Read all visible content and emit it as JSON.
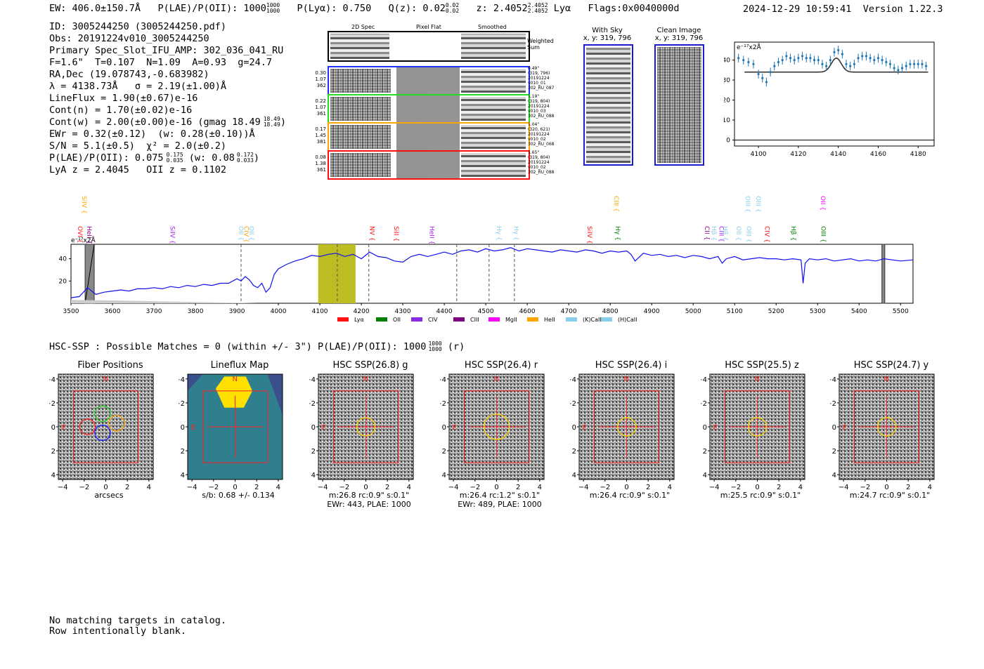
{
  "header": {
    "ew": "EW: 406.0±150.7Å",
    "plae": "P(LAE)/P(OII): 1000",
    "plae_hi": "1000",
    "plae_lo": "1000",
    "plya": "P(Lyα): 0.750",
    "qz": "Q(z): 0.02",
    "qz_hi": "0.02",
    "qz_lo": "0.02",
    "z": "z: 2.4052",
    "z_hi": "2.4052",
    "z_lo": "2.4052",
    "z_line": "Lyα",
    "flags": "Flags:0x0040000d",
    "timestamp": "2024-12-29 10:59:41",
    "version": "Version 1.22.3"
  },
  "info": [
    "ID: 3005244250 (3005244250.pdf)",
    "Obs: 20191224v010_3005244250",
    "Primary Spec_Slot_IFU_AMP: 302_036_041_RU",
    "F=1.6\"  T=0.107  N=1.09  A=0.93  g=24.7",
    "RA,Dec (19.078743,-0.683982)",
    "λ = 4138.73Å   σ = 2.19(±1.00)Å",
    "LineFlux = 1.90(±0.67)e-16",
    "Cont(n) = 1.70(±0.02)e-16",
    "Cont(w) = 2.00(±0.00)e-16 (gmag 18.49",
    "EWr = 0.32(±0.12)  (w: 0.28(±0.10))Å",
    "S/N = 5.1(±0.5)  χ² = 2.0(±0.2)",
    "P(LAE)/P(OII): 0.075",
    "LyA z = 2.4045   OII z = 0.1102"
  ],
  "info_sup": {
    "gmag_hi": "18.49",
    "gmag_lo": "18.49",
    "gmag_close": ")",
    "plae_hi": "0.175",
    "plae_lo": "0.035",
    "plae_w": "(w: 0.08",
    "plae_w_hi": "0.172",
    "plae_w_lo": "0.033",
    "plae_w_close": ")"
  },
  "cutouts": {
    "col_labels": [
      "2D Spec",
      "Pixel Flat",
      "Smoothed"
    ],
    "weighted_label": "Weighted Sum",
    "rows": [
      {
        "stats": [
          "0.30",
          "1.07",
          "362"
        ],
        "meta": [
          "0.49\"",
          "(319, 796)",
          "20191224",
          "v010_01",
          "302_RU_087"
        ],
        "color": "#2030ff"
      },
      {
        "stats": [
          "0.22",
          "1.07",
          "361"
        ],
        "meta": [
          "1.19\"",
          "(319, 804)",
          "20191224",
          "v010_03",
          "302_RU_088"
        ],
        "color": "#22dd22"
      },
      {
        "stats": [
          "0.17",
          "1.45",
          "381"
        ],
        "meta": [
          "1.04\"",
          "(320, 621)",
          "20191224",
          "v010_02",
          "302_RU_068"
        ],
        "color": "#ffa500"
      },
      {
        "stats": [
          "0.08",
          "1.38",
          "361"
        ],
        "meta": [
          "1.65\"",
          "(319, 804)",
          "20191224",
          "v010_02",
          "302_RU_088"
        ],
        "color": "#ff1010"
      }
    ],
    "with_sky": "With Sky",
    "with_sky_xy": "x, y: 319, 796",
    "clean": "Clean Image",
    "clean_xy": "x, y: 319, 796"
  },
  "zoom_chart": {
    "type": "scatter",
    "units": "e⁻¹⁷x2Å",
    "xlim": [
      4088,
      4188
    ],
    "ylim": [
      -3,
      49
    ],
    "xticks": [
      4100,
      4120,
      4140,
      4160,
      4180
    ],
    "yticks": [
      0,
      10,
      20,
      30,
      40
    ],
    "x": [
      4090,
      4092.5,
      4095,
      4097.5,
      4100,
      4102,
      4104,
      4106,
      4108,
      4110,
      4112,
      4114,
      4116,
      4118,
      4120,
      4122,
      4124,
      4126,
      4128,
      4130,
      4132,
      4134,
      4136,
      4138,
      4140,
      4142,
      4144,
      4146,
      4148,
      4150,
      4152,
      4154,
      4156,
      4158,
      4160,
      4162,
      4164,
      4166,
      4168,
      4170,
      4172,
      4174,
      4176,
      4178,
      4180,
      4182,
      4184
    ],
    "y": [
      41,
      40,
      39,
      38,
      33,
      31,
      29,
      34,
      37,
      39,
      40,
      42,
      41,
      40,
      41,
      42,
      41,
      41,
      40,
      40,
      38,
      37,
      40,
      44,
      45,
      43,
      38,
      37,
      38,
      41,
      42,
      42,
      41,
      40,
      41,
      40,
      39,
      38,
      36,
      35,
      36,
      37,
      38,
      38,
      38,
      38,
      37
    ],
    "model_base": 34,
    "model_peak": 41,
    "model_center": 4139,
    "model_sigma": 2.5
  },
  "spectrum": {
    "type": "line",
    "units": "e⁻¹⁷x2Å",
    "xlim": [
      3500,
      5530
    ],
    "ylim": [
      0,
      53
    ],
    "xticks": [
      3500,
      3600,
      3700,
      3800,
      3900,
      4000,
      4100,
      4200,
      4300,
      4400,
      4500,
      4600,
      4700,
      4800,
      4900,
      5000,
      5100,
      5200,
      5300,
      5400,
      5500
    ],
    "yticks": [
      20,
      40
    ],
    "series_x": [
      3500,
      3520,
      3540,
      3560,
      3580,
      3600,
      3620,
      3640,
      3660,
      3680,
      3700,
      3720,
      3740,
      3760,
      3780,
      3800,
      3820,
      3840,
      3860,
      3880,
      3900,
      3910,
      3920,
      3930,
      3940,
      3950,
      3960,
      3970,
      3980,
      3990,
      4000,
      4020,
      4040,
      4060,
      4080,
      4100,
      4120,
      4140,
      4160,
      4180,
      4200,
      4220,
      4240,
      4260,
      4280,
      4300,
      4320,
      4340,
      4360,
      4380,
      4400,
      4420,
      4440,
      4460,
      4480,
      4500,
      4520,
      4540,
      4560,
      4580,
      4600,
      4620,
      4640,
      4660,
      4680,
      4700,
      4720,
      4740,
      4760,
      4780,
      4800,
      4820,
      4840,
      4850,
      4860,
      4880,
      4900,
      4920,
      4940,
      4960,
      4980,
      5000,
      5020,
      5040,
      5060,
      5070,
      5080,
      5100,
      5120,
      5140,
      5160,
      5180,
      5200,
      5220,
      5240,
      5260,
      5265,
      5270,
      5280,
      5300,
      5320,
      5340,
      5360,
      5380,
      5400,
      5420,
      5440,
      5460,
      5480,
      5500,
      5530
    ],
    "series_y": [
      5,
      6,
      14,
      8,
      10,
      11,
      12,
      11,
      13,
      13,
      14,
      13,
      15,
      14,
      16,
      15,
      17,
      16,
      18,
      18,
      22,
      20,
      24,
      21,
      16,
      14,
      18,
      10,
      14,
      26,
      31,
      35,
      38,
      40,
      43,
      42,
      44,
      45,
      42,
      44,
      40,
      46,
      42,
      41,
      38,
      37,
      42,
      44,
      42,
      44,
      46,
      44,
      47,
      48,
      46,
      49,
      47,
      48,
      50,
      47,
      49,
      48,
      47,
      46,
      48,
      47,
      46,
      48,
      47,
      45,
      47,
      46,
      47,
      44,
      38,
      45,
      43,
      44,
      42,
      43,
      41,
      43,
      42,
      40,
      42,
      36,
      40,
      42,
      39,
      40,
      41,
      40,
      40,
      39,
      40,
      39,
      18,
      36,
      40,
      39,
      40,
      38,
      39,
      40,
      38,
      39,
      38,
      40,
      39,
      38,
      39
    ],
    "vlines": [
      3910,
      4142,
      4218,
      4430,
      4508,
      4569
    ],
    "highlight": [
      4096,
      4186
    ],
    "gap1": [
      3534,
      3556
    ],
    "gap2": [
      5455,
      5462
    ],
    "line_labels": [
      {
        "text": "OVI",
        "x": 3512,
        "color": "#ff1010",
        "row": 2
      },
      {
        "text": "HeII",
        "x": 3534,
        "color": "#8b008b",
        "row": 2
      },
      {
        "text": "SiIV",
        "x": 3522,
        "color": "#ffa500",
        "row": 1
      },
      {
        "text": "SiIV",
        "x": 3735,
        "color": "#a020f0",
        "row": 2
      },
      {
        "text": "OII",
        "x": 3900,
        "color": "#87ceeb",
        "row": 2
      },
      {
        "text": "CIV",
        "x": 3913,
        "color": "#ffa500",
        "row": 2
      },
      {
        "text": "OII",
        "x": 3925,
        "color": "#87ceeb",
        "row": 2
      },
      {
        "text": "NV",
        "x": 4216,
        "color": "#ff1010",
        "row": 2
      },
      {
        "text": "SiII",
        "x": 4274,
        "color": "#ff1010",
        "row": 2
      },
      {
        "text": "HeII",
        "x": 4360,
        "color": "#a020f0",
        "row": 2
      },
      {
        "text": "Hγ",
        "x": 4522,
        "color": "#87ceeb",
        "row": 2
      },
      {
        "text": "Hγ",
        "x": 4563,
        "color": "#87ceeb",
        "row": 2
      },
      {
        "text": "SiIV",
        "x": 4740,
        "color": "#ff1010",
        "row": 2
      },
      {
        "text": "CIII",
        "x": 4805,
        "color": "#ffa500",
        "row": 1
      },
      {
        "text": "Hγ",
        "x": 4808,
        "color": "#008000",
        "row": 2
      },
      {
        "text": "CII",
        "x": 5023,
        "color": "#8b008b",
        "row": 2
      },
      {
        "text": "Hβ",
        "x": 5040,
        "color": "#87ceeb",
        "row": 2
      },
      {
        "text": "CIII",
        "x": 5058,
        "color": "#a020f0",
        "row": 2
      },
      {
        "text": "Hβ",
        "x": 5067,
        "color": "#87ceeb",
        "row": 2
      },
      {
        "text": "OII",
        "x": 5100,
        "color": "#87ceeb",
        "row": 2
      },
      {
        "text": "OIII",
        "x": 5122,
        "color": "#87ceeb",
        "row": 1
      },
      {
        "text": "OIII",
        "x": 5124,
        "color": "#87ceeb",
        "row": 2
      },
      {
        "text": "OIII",
        "x": 5147,
        "color": "#87ceeb",
        "row": 1
      },
      {
        "text": "CIV",
        "x": 5168,
        "color": "#ff1010",
        "row": 2
      },
      {
        "text": "Hβ",
        "x": 5232,
        "color": "#008000",
        "row": 2
      },
      {
        "text": "OIII",
        "x": 5304,
        "color": "#008000",
        "row": 2
      },
      {
        "text": "OII",
        "x": 5303,
        "color": "#ff00ff",
        "row": 1
      }
    ],
    "legend": [
      {
        "label": "Lyα",
        "color": "#ff1010"
      },
      {
        "label": "OII",
        "color": "#008000"
      },
      {
        "label": "CIV",
        "color": "#8a2be2"
      },
      {
        "label": "CIII",
        "color": "#800080"
      },
      {
        "label": "MgII",
        "color": "#ff00ff"
      },
      {
        "label": "HeII",
        "color": "#ffa500"
      },
      {
        "label": "(K)CaII",
        "color": "#87ceeb"
      },
      {
        "label": "(H)CaII",
        "color": "#87ceeb"
      }
    ]
  },
  "hsc": {
    "title": "HSC-SSP : Possible Matches = 0 (within +/- 3\")  P(LAE)/P(OII): 1000",
    "title_hi": "1000",
    "title_lo": "1000",
    "title_tail": "(r)",
    "xticks": [
      "−4",
      "−2",
      "0",
      "2",
      "4"
    ],
    "yticks": [
      "4",
      "2",
      "0",
      "−2",
      "−4"
    ],
    "panels": [
      {
        "title": "Fiber Positions",
        "lines": [
          "arcsecs"
        ]
      },
      {
        "title": "Lineflux Map",
        "lines": [
          "s/b: 0.68 +/- 0.134"
        ]
      },
      {
        "title": "HSC SSP(26.8) g",
        "lines": [
          "m:26.8 rc:0.9\"  s:0.1\"",
          "EWr: 443, PLAE: 1000"
        ]
      },
      {
        "title": "HSC SSP(26.4) r",
        "lines": [
          "m:26.4 rc:1.2\"  s:0.1\"",
          "EWr: 489, PLAE: 1000"
        ]
      },
      {
        "title": "HSC SSP(26.4) i",
        "lines": [
          "m:26.4 rc:0.9\"  s:0.1\""
        ]
      },
      {
        "title": "HSC SSP(25.5) z",
        "lines": [
          "m:25.5 rc:0.9\"  s:0.1\""
        ]
      },
      {
        "title": "HSC SSP(24.7) y",
        "lines": [
          "m:24.7 rc:0.9\"  s:0.1\""
        ]
      }
    ],
    "n_label": "N",
    "e_label": "E"
  },
  "footer": [
    "No matching targets in catalog.",
    "Row intentionally blank."
  ]
}
